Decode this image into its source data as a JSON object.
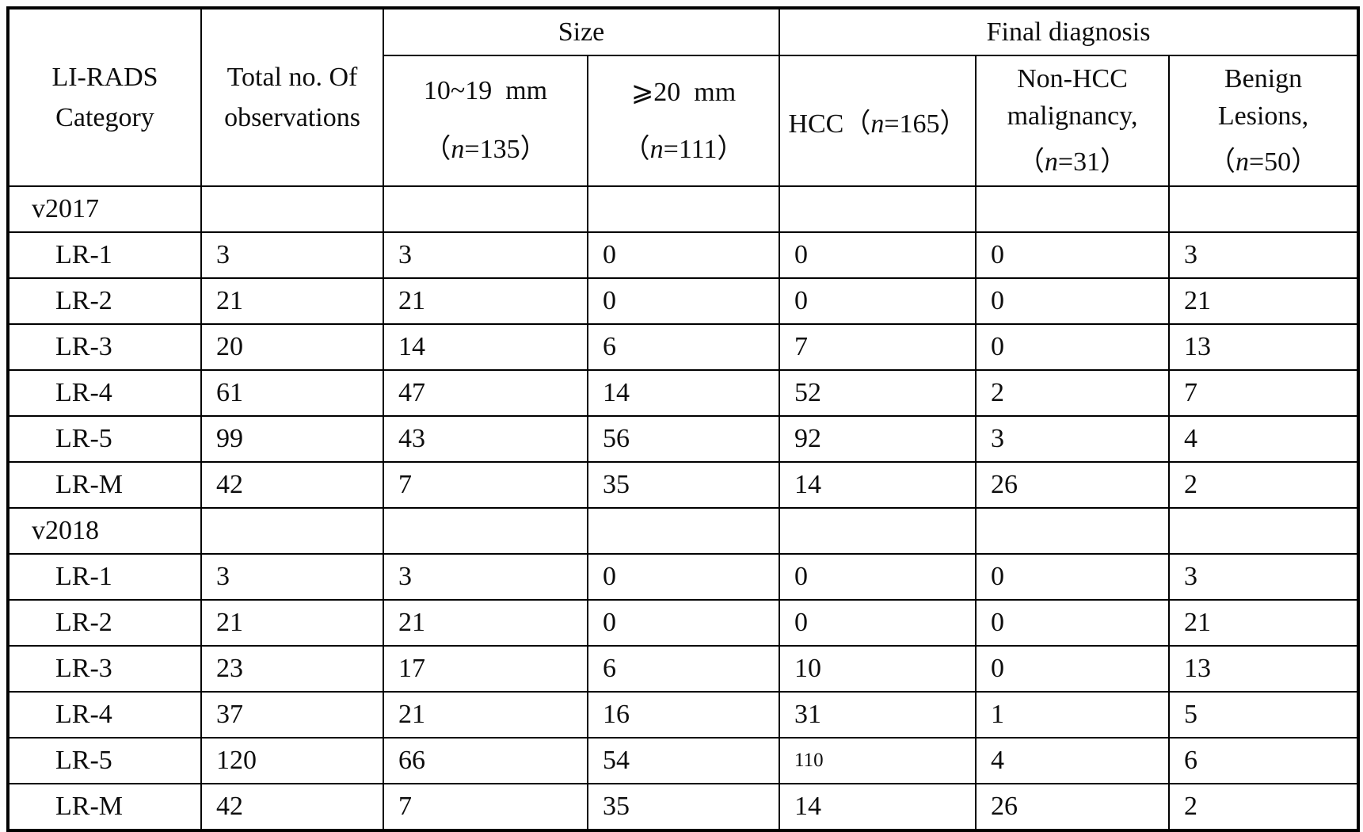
{
  "page": {
    "background": "#fcfcfc",
    "border_color": "#000000",
    "text_color": "#0d0d0d"
  },
  "table": {
    "header": {
      "category": {
        "line1": "LI-RADS",
        "line2": "Category"
      },
      "total": {
        "line1": "Total no. Of",
        "line2": "observations"
      },
      "size_group_label": "Size",
      "diagnosis_group_label": "Final diagnosis",
      "size_10_19": {
        "line1": "10~19  mm",
        "open": "（",
        "n": "n",
        "rest": "=135）"
      },
      "size_ge_20": {
        "line1": "⩾20  mm",
        "open": "（",
        "n": "n",
        "rest": "=111）"
      },
      "hcc": {
        "text": "HCC",
        "open": "（",
        "n": "n",
        "rest": "=165）"
      },
      "non_hcc": {
        "line1": "Non-HCC",
        "line2": "malignancy,",
        "open": "（",
        "n": "n",
        "rest": "=31）"
      },
      "benign": {
        "line1": "Benign",
        "line2": "Lesions,",
        "open": "（",
        "n": "n",
        "rest": "=50）"
      }
    },
    "column_keys": [
      "total_observations",
      "size_10_19mm",
      "size_ge_20mm",
      "hcc",
      "non_hcc_malignancy",
      "benign_lesions"
    ],
    "rows": [
      {
        "label": "v2017",
        "kind": "section",
        "values": [
          "",
          "",
          "",
          "",
          "",
          ""
        ]
      },
      {
        "label": "LR-1",
        "kind": "data",
        "values": [
          "3",
          "3",
          "0",
          "0",
          "0",
          "3"
        ]
      },
      {
        "label": "LR-2",
        "kind": "data",
        "values": [
          "21",
          "21",
          "0",
          "0",
          "0",
          "21"
        ]
      },
      {
        "label": "LR-3",
        "kind": "data",
        "values": [
          "20",
          "14",
          "6",
          "7",
          "0",
          "13"
        ]
      },
      {
        "label": "LR-4",
        "kind": "data",
        "values": [
          "61",
          "47",
          "14",
          "52",
          "2",
          "7"
        ]
      },
      {
        "label": "LR-5",
        "kind": "data",
        "values": [
          "99",
          "43",
          "56",
          "92",
          "3",
          "4"
        ]
      },
      {
        "label": "LR-M",
        "kind": "data",
        "values": [
          "42",
          "7",
          "35",
          "14",
          "26",
          "2"
        ]
      },
      {
        "label": "v2018",
        "kind": "section",
        "values": [
          "",
          "",
          "",
          "",
          "",
          ""
        ]
      },
      {
        "label": "LR-1",
        "kind": "data",
        "values": [
          "3",
          "3",
          "0",
          "0",
          "0",
          "3"
        ]
      },
      {
        "label": "LR-2",
        "kind": "data",
        "values": [
          "21",
          "21",
          "0",
          "0",
          "0",
          "21"
        ]
      },
      {
        "label": "LR-3",
        "kind": "data",
        "values": [
          "23",
          "17",
          "6",
          "10",
          "0",
          "13"
        ]
      },
      {
        "label": "LR-4",
        "kind": "data",
        "values": [
          "37",
          "21",
          "16",
          "31",
          "1",
          "5"
        ]
      },
      {
        "label": "LR-5",
        "kind": "data",
        "values": [
          "120",
          "66",
          "54",
          "110",
          "4",
          "6"
        ],
        "small": [
          3
        ]
      },
      {
        "label": "LR-M",
        "kind": "data",
        "values": [
          "42",
          "7",
          "35",
          "14",
          "26",
          "2"
        ]
      }
    ]
  }
}
